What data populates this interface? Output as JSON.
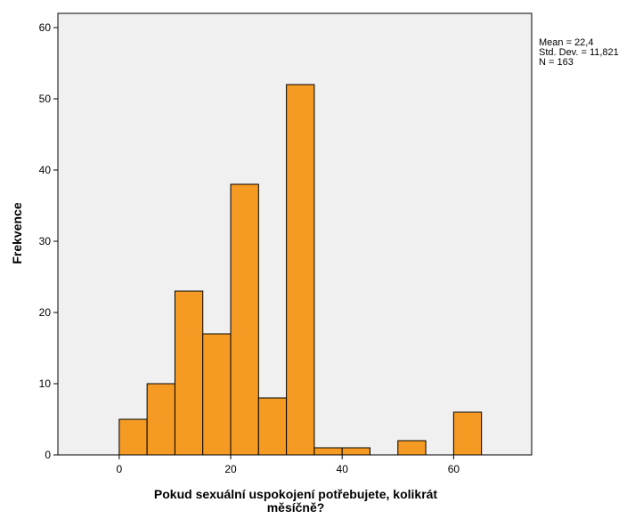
{
  "chart_data": {
    "type": "bar",
    "subtype": "histogram",
    "xlabel": "Pokud sexuální uspokojení potřebujete, kolikrát měsíčně?",
    "xlabel_lines": [
      "Pokud sexuální uspokojení potřebujete, kolikrát",
      "měsíčně?"
    ],
    "ylabel": "Frekvence",
    "xlim": [
      -11,
      74
    ],
    "ylim": [
      0,
      62
    ],
    "x_ticks": [
      0,
      20,
      40,
      60
    ],
    "y_ticks": [
      0,
      10,
      20,
      30,
      40,
      50,
      60
    ],
    "bins": [
      {
        "from": 0,
        "to": 5,
        "count": 5
      },
      {
        "from": 5,
        "to": 10,
        "count": 10
      },
      {
        "from": 10,
        "to": 15,
        "count": 23
      },
      {
        "from": 15,
        "to": 20,
        "count": 17
      },
      {
        "from": 20,
        "to": 25,
        "count": 38
      },
      {
        "from": 25,
        "to": 30,
        "count": 8
      },
      {
        "from": 30,
        "to": 35,
        "count": 52
      },
      {
        "from": 35,
        "to": 40,
        "count": 1
      },
      {
        "from": 40,
        "to": 45,
        "count": 1
      },
      {
        "from": 50,
        "to": 55,
        "count": 2
      },
      {
        "from": 60,
        "to": 65,
        "count": 6
      }
    ],
    "stats": [
      "Mean = 22,4",
      "Std. Dev. = 11,821",
      "N = 163"
    ],
    "grid": false,
    "colors": {
      "bar": "#f59a23",
      "bar_stroke": "#000000",
      "plot_background": "#f0f0f0"
    }
  }
}
